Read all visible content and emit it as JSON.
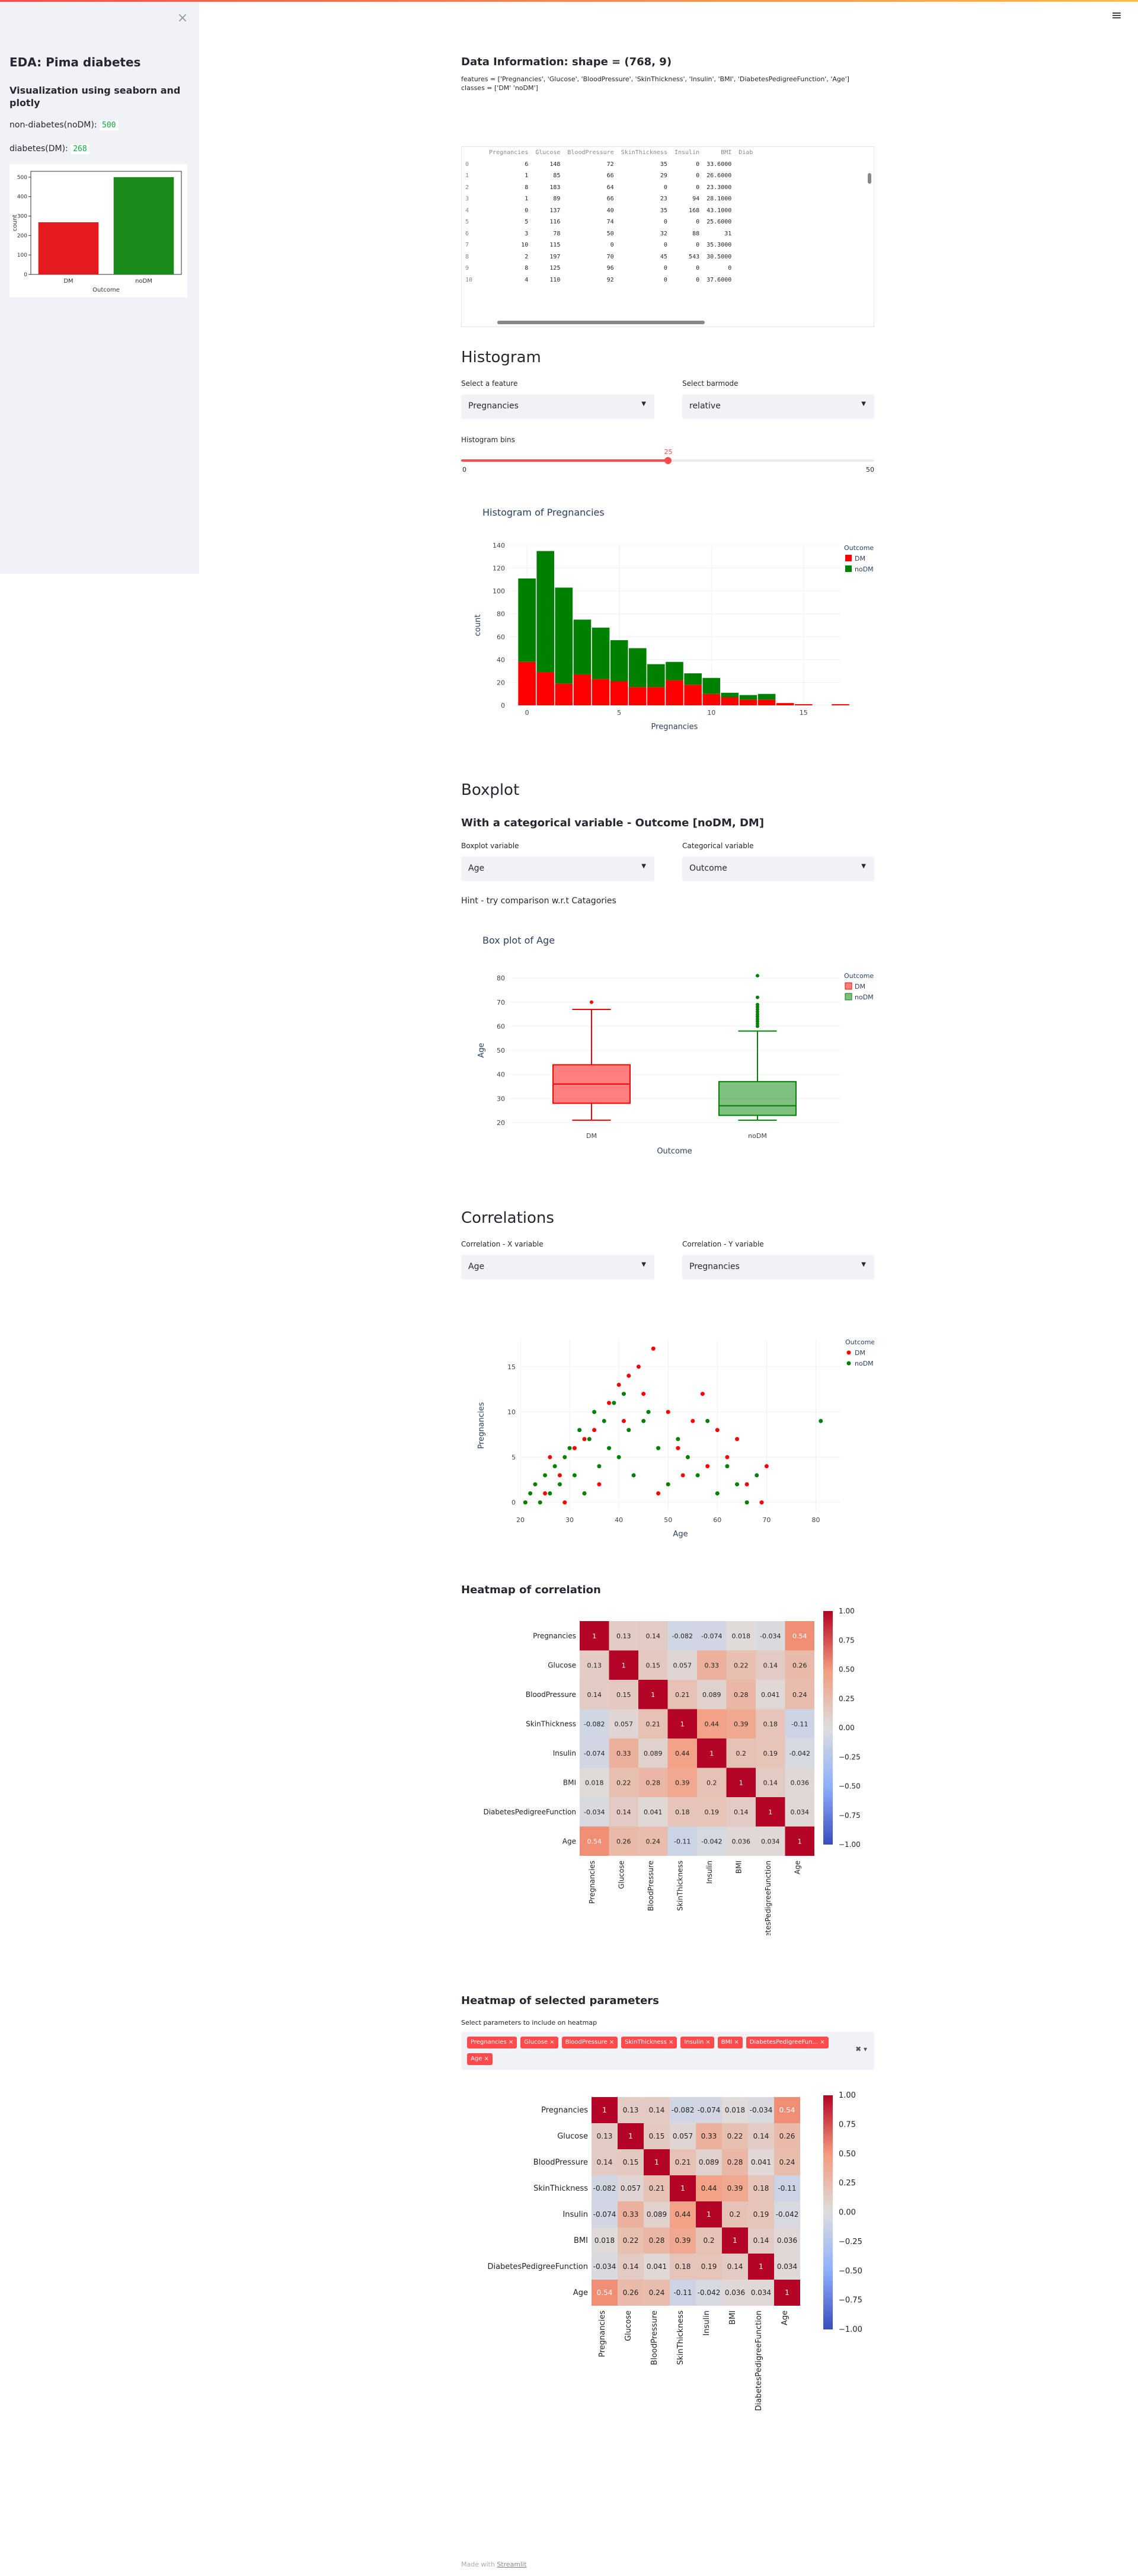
{
  "sidebar": {
    "title": "EDA: Pima diabetes",
    "subtitle": "Visualization using seaborn and plotly",
    "nondiab_label": "non-diabetes(noDM):",
    "nondiab_count": "500",
    "diab_label": "diabetes(DM):",
    "diab_count": "268",
    "chart": {
      "xlabel": "Outcome",
      "ylabel": "count",
      "categories": [
        "DM",
        "noDM"
      ],
      "values": [
        268,
        500
      ],
      "ticks": [
        "0",
        "100",
        "200",
        "300",
        "400",
        "500"
      ]
    }
  },
  "info": {
    "heading": "Data Information: shape = (768, 9)",
    "features": "features = ['Pregnancies', 'Glucose', 'BloodPressure', 'SkinThickness', 'Insulin', 'BMI', 'DiabetesPedigreeFunction', 'Age']",
    "classes": "classes = ['DM' 'noDM']"
  },
  "dataframe": {
    "columns": [
      "",
      "Pregnancies",
      "Glucose",
      "BloodPressure",
      "SkinThickness",
      "Insulin",
      "BMI",
      "Diab"
    ],
    "rows": [
      [
        "0",
        "6",
        "148",
        "72",
        "35",
        "0",
        "33.6000"
      ],
      [
        "1",
        "1",
        "85",
        "66",
        "29",
        "0",
        "26.6000"
      ],
      [
        "2",
        "8",
        "183",
        "64",
        "0",
        "0",
        "23.3000"
      ],
      [
        "3",
        "1",
        "89",
        "66",
        "23",
        "94",
        "28.1000"
      ],
      [
        "4",
        "0",
        "137",
        "40",
        "35",
        "168",
        "43.1000"
      ],
      [
        "5",
        "5",
        "116",
        "74",
        "0",
        "0",
        "25.6000"
      ],
      [
        "6",
        "3",
        "78",
        "50",
        "32",
        "88",
        "31"
      ],
      [
        "7",
        "10",
        "115",
        "0",
        "0",
        "0",
        "35.3000"
      ],
      [
        "8",
        "2",
        "197",
        "70",
        "45",
        "543",
        "30.5000"
      ],
      [
        "9",
        "8",
        "125",
        "96",
        "0",
        "0",
        "0"
      ],
      [
        "10",
        "4",
        "110",
        "92",
        "0",
        "0",
        "37.6000"
      ]
    ]
  },
  "histogram": {
    "heading": "Histogram",
    "feature_label": "Select a feature",
    "feature_value": "Pregnancies",
    "barmode_label": "Select barmode",
    "barmode_value": "relative",
    "bins_label": "Histogram bins",
    "bins_value": "25",
    "bins_min": "0",
    "bins_max": "50",
    "chart_title": "Histogram of Pregnancies",
    "xlabel": "Pregnancies",
    "ylabel": "count",
    "legend_title": "Outcome",
    "legend": [
      "DM",
      "noDM"
    ],
    "yticks": [
      "0",
      "20",
      "40",
      "60",
      "80",
      "100",
      "120",
      "140"
    ],
    "xticks": [
      "0",
      "5",
      "10",
      "15"
    ]
  },
  "boxplot": {
    "heading": "Boxplot",
    "subheading": "With a categorical variable - Outcome [noDM, DM]",
    "var_label": "Boxplot variable",
    "var_value": "Age",
    "cat_label": "Categorical variable",
    "cat_value": "Outcome",
    "hint": "Hint - try comparison w.r.t Catagories",
    "chart_title": "Box plot of Age",
    "xlabel": "Outcome",
    "ylabel": "Age",
    "legend_title": "Outcome",
    "legend": [
      "DM",
      "noDM"
    ],
    "yticks": [
      "20",
      "30",
      "40",
      "50",
      "60",
      "70",
      "80"
    ]
  },
  "correlations": {
    "heading": "Correlations",
    "x_label": "Correlation - X variable",
    "x_value": "Age",
    "y_label": "Correlation - Y variable",
    "y_value": "Pregnancies",
    "xlabel": "Age",
    "ylabel": "Pregnancies",
    "legend_title": "Outcome",
    "legend": [
      "DM",
      "noDM"
    ],
    "xticks": [
      "20",
      "30",
      "40",
      "50",
      "60",
      "70",
      "80"
    ],
    "yticks": [
      "0",
      "5",
      "10",
      "15"
    ]
  },
  "heatmap1": {
    "heading": "Heatmap of correlation",
    "cbar": [
      "1.00",
      "0.75",
      "0.50",
      "0.25",
      "0.00",
      "−0.25",
      "−0.50",
      "−0.75",
      "−1.00"
    ]
  },
  "heatmap2": {
    "heading": "Heatmap of selected parameters",
    "select_label": "Select parameters to include on heatmap",
    "tags": [
      "Pregnancies",
      "Glucose",
      "BloodPressure",
      "SkinThickness",
      "Insulin",
      "BMI",
      "DiabetesPedigreeFun...",
      "Age"
    ]
  },
  "chart_data": [
    {
      "type": "bar",
      "title": "",
      "xlabel": "Outcome",
      "ylabel": "count",
      "categories": [
        "DM",
        "noDM"
      ],
      "values": [
        268,
        500
      ],
      "colors": [
        "#e41a1c",
        "#1a8a1a"
      ]
    },
    {
      "type": "bar",
      "title": "Histogram of Pregnancies",
      "xlabel": "Pregnancies",
      "ylabel": "count",
      "x": [
        0,
        1,
        2,
        3,
        4,
        5,
        6,
        7,
        8,
        9,
        10,
        11,
        12,
        13,
        14,
        15,
        17
      ],
      "series": [
        {
          "name": "DM",
          "values": [
            38,
            29,
            19,
            27,
            23,
            21,
            16,
            16,
            22,
            18,
            10,
            7,
            5,
            5,
            2,
            1,
            1
          ]
        },
        {
          "name": "noDM",
          "values": [
            73,
            106,
            84,
            48,
            45,
            36,
            34,
            20,
            16,
            10,
            14,
            4,
            4,
            5,
            0,
            0,
            0
          ]
        }
      ],
      "ylim": [
        0,
        140
      ]
    },
    {
      "type": "box",
      "title": "Box plot of Age",
      "xlabel": "Outcome",
      "ylabel": "Age",
      "categories": [
        "DM",
        "noDM"
      ],
      "stats": [
        {
          "min": 21,
          "q1": 28,
          "median": 36,
          "q3": 44,
          "max": 67,
          "outliers": [
            70
          ]
        },
        {
          "min": 21,
          "q1": 23,
          "median": 27,
          "q3": 37,
          "max": 58,
          "outliers": [
            60,
            61,
            62,
            63,
            64,
            65,
            66,
            67,
            68,
            69,
            72,
            81
          ]
        }
      ],
      "ylim": [
        20,
        82
      ]
    },
    {
      "type": "scatter",
      "xlabel": "Age",
      "ylabel": "Pregnancies",
      "series": [
        {
          "name": "DM",
          "points": [
            [
              21,
              0
            ],
            [
              25,
              1
            ],
            [
              28,
              3
            ],
            [
              33,
              7
            ],
            [
              35,
              8
            ],
            [
              38,
              11
            ],
            [
              40,
              13
            ],
            [
              42,
              14
            ],
            [
              45,
              12
            ],
            [
              47,
              17
            ],
            [
              50,
              10
            ],
            [
              52,
              6
            ],
            [
              55,
              9
            ],
            [
              58,
              4
            ],
            [
              60,
              8
            ],
            [
              62,
              5
            ],
            [
              66,
              2
            ],
            [
              69,
              0
            ],
            [
              70,
              4
            ],
            [
              44,
              15
            ],
            [
              41,
              9
            ],
            [
              36,
              2
            ],
            [
              31,
              6
            ],
            [
              29,
              0
            ],
            [
              26,
              5
            ],
            [
              48,
              1
            ],
            [
              53,
              3
            ],
            [
              57,
              12
            ],
            [
              64,
              7
            ]
          ]
        },
        {
          "name": "noDM",
          "points": [
            [
              21,
              0
            ],
            [
              22,
              1
            ],
            [
              23,
              2
            ],
            [
              24,
              0
            ],
            [
              25,
              3
            ],
            [
              26,
              1
            ],
            [
              27,
              4
            ],
            [
              28,
              2
            ],
            [
              29,
              5
            ],
            [
              30,
              6
            ],
            [
              31,
              3
            ],
            [
              32,
              8
            ],
            [
              33,
              1
            ],
            [
              34,
              7
            ],
            [
              35,
              10
            ],
            [
              36,
              4
            ],
            [
              37,
              9
            ],
            [
              38,
              6
            ],
            [
              39,
              11
            ],
            [
              40,
              5
            ],
            [
              41,
              12
            ],
            [
              42,
              8
            ],
            [
              43,
              3
            ],
            [
              45,
              9
            ],
            [
              46,
              10
            ],
            [
              48,
              6
            ],
            [
              50,
              2
            ],
            [
              52,
              7
            ],
            [
              54,
              5
            ],
            [
              56,
              3
            ],
            [
              58,
              9
            ],
            [
              60,
              1
            ],
            [
              62,
              4
            ],
            [
              64,
              2
            ],
            [
              66,
              0
            ],
            [
              68,
              3
            ],
            [
              81,
              9
            ]
          ]
        }
      ],
      "xlim": [
        20,
        85
      ],
      "ylim": [
        -1,
        18
      ]
    },
    {
      "type": "heatmap",
      "labels": [
        "Pregnancies",
        "Glucose",
        "BloodPressure",
        "SkinThickness",
        "Insulin",
        "BMI",
        "DiabetesPedigreeFunction",
        "Age"
      ],
      "values": [
        [
          1,
          0.13,
          0.14,
          -0.082,
          -0.074,
          0.018,
          -0.034,
          0.54
        ],
        [
          0.13,
          1,
          0.15,
          0.057,
          0.33,
          0.22,
          0.14,
          0.26
        ],
        [
          0.14,
          0.15,
          1,
          0.21,
          0.089,
          0.28,
          0.041,
          0.24
        ],
        [
          -0.082,
          0.057,
          0.21,
          1,
          0.44,
          0.39,
          0.18,
          -0.11
        ],
        [
          -0.074,
          0.33,
          0.089,
          0.44,
          1,
          0.2,
          0.19,
          -0.042
        ],
        [
          0.018,
          0.22,
          0.28,
          0.39,
          0.2,
          1,
          0.14,
          0.036
        ],
        [
          -0.034,
          0.14,
          0.041,
          0.18,
          0.19,
          0.14,
          1,
          0.034
        ],
        [
          0.54,
          0.26,
          0.24,
          -0.11,
          -0.042,
          0.036,
          0.034,
          1
        ]
      ],
      "vmin": -1,
      "vmax": 1
    }
  ],
  "footer": {
    "made": "Made with",
    "link": "Streamlit"
  },
  "colors": {
    "dm": "#ff0000",
    "nodm": "#008000",
    "accent": "#ff4b4b"
  }
}
